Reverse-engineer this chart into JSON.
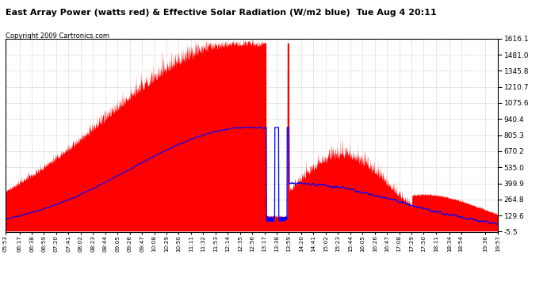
{
  "title": "East Array Power (watts red) & Effective Solar Radiation (W/m2 blue)  Tue Aug 4 20:11",
  "copyright": "Copyright 2009 Cartronics.com",
  "ymin": -5.5,
  "ymax": 1616.1,
  "yticks": [
    1616.1,
    1481.0,
    1345.8,
    1210.7,
    1075.6,
    940.4,
    805.3,
    670.2,
    535.0,
    399.9,
    264.8,
    129.6,
    -5.5
  ],
  "background_color": "#ffffff",
  "plot_bg_color": "#ffffff",
  "grid_color": "#aaaaaa",
  "fill_color": "#ff0000",
  "line_color": "#0000ff",
  "xtick_labels": [
    "05:53",
    "06:17",
    "06:38",
    "06:59",
    "07:20",
    "07:41",
    "08:02",
    "08:23",
    "08:44",
    "09:05",
    "09:26",
    "09:47",
    "10:08",
    "10:29",
    "10:50",
    "11:11",
    "11:32",
    "11:53",
    "12:14",
    "12:35",
    "12:56",
    "13:17",
    "13:38",
    "13:59",
    "14:20",
    "14:41",
    "15:02",
    "15:23",
    "15:44",
    "16:05",
    "16:26",
    "16:47",
    "17:08",
    "17:29",
    "17:50",
    "18:11",
    "18:34",
    "18:54",
    "19:36",
    "19:57"
  ]
}
